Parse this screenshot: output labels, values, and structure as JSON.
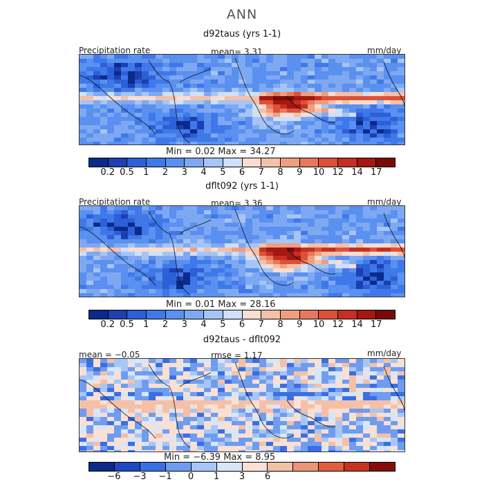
{
  "title": "ANN",
  "panels": [
    {
      "id": "d92taus",
      "subtitle": "d92taus (yrs 1-1)",
      "left_label": "Precipitation rate",
      "center_label": "mean=   3.31",
      "right_label": "mm/day",
      "min_max": "Min =    0.02  Max =   34.27",
      "colorbar_ticks": [
        "0.2",
        "0.5",
        "1",
        "2",
        "3",
        "4",
        "5",
        "6",
        "7",
        "8",
        "9",
        "10",
        "12",
        "14",
        "17"
      ],
      "colormap": "precip"
    },
    {
      "id": "dflt092",
      "subtitle": "dflt092 (yrs 1-1)",
      "left_label": "Precipitation rate",
      "center_label": "mean=   3.36",
      "right_label": "mm/day",
      "min_max": "Min =    0.01  Max =   28.16",
      "colorbar_ticks": [
        "0.2",
        "0.5",
        "1",
        "2",
        "3",
        "4",
        "5",
        "6",
        "7",
        "8",
        "9",
        "10",
        "12",
        "14",
        "17"
      ],
      "colormap": "precip"
    },
    {
      "id": "diff",
      "subtitle": "d92taus - dflt092",
      "left_label": "mean =   −0.05",
      "center_label": "rmse =    1.17",
      "right_label": "mm/day",
      "min_max": "Min =   −6.39  Max =    8.95",
      "colorbar_ticks": [
        "−6",
        "−3",
        "−1",
        "0",
        "1",
        "3",
        "6"
      ],
      "colormap": "diff"
    }
  ],
  "colors": {
    "precip_bins": [
      "#0a2a8c",
      "#1d3fb0",
      "#2d5fd6",
      "#3f78e8",
      "#5a90ef",
      "#7ea9f2",
      "#a6c5f5",
      "#cfe0f8",
      "#f8ddd0",
      "#f4c0a8",
      "#ef9e80",
      "#e8785a",
      "#dc5138",
      "#c53020",
      "#a31810",
      "#7a0a08"
    ],
    "diff_bins": [
      "#0a2a8c",
      "#1d48c2",
      "#3a6fe4",
      "#6f9cf0",
      "#a8c6f5",
      "#d8e6f8",
      "#f8e0d4",
      "#f4c0a8",
      "#ec9474",
      "#e0603e",
      "#c43420",
      "#8a0c0a"
    ]
  }
}
